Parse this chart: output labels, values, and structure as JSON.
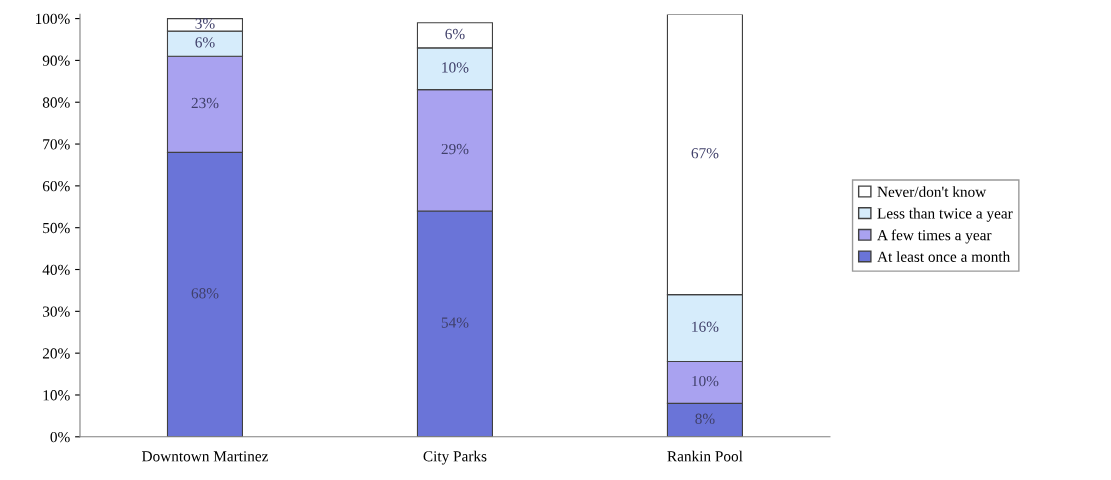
{
  "chart_data": {
    "type": "bar",
    "stacked": true,
    "categories": [
      "Downtown Martinez",
      "City Parks",
      "Rankin Pool"
    ],
    "series": [
      {
        "name": "At least once a month",
        "color": "#6a74d8",
        "values": [
          68,
          54,
          8
        ],
        "value_labels": [
          "68%",
          "54%",
          "8%"
        ]
      },
      {
        "name": "A few times a year",
        "color": "#a9a2f0",
        "values": [
          23,
          29,
          10
        ],
        "value_labels": [
          "23%",
          "29%",
          "10%"
        ]
      },
      {
        "name": "Less than twice a year",
        "color": "#d6ecfb",
        "values": [
          6,
          10,
          16
        ],
        "value_labels": [
          "6%",
          "10%",
          "16%"
        ]
      },
      {
        "name": "Never/don't know",
        "color": "#ffffff",
        "values": [
          3,
          6,
          67
        ],
        "value_labels": [
          "3%",
          "6%",
          "67%"
        ]
      }
    ],
    "ylim": [
      0,
      101
    ],
    "yticks": [
      {
        "value": 0,
        "label": "0%"
      },
      {
        "value": 10,
        "label": "10%"
      },
      {
        "value": 20,
        "label": "20%"
      },
      {
        "value": 30,
        "label": "30%"
      },
      {
        "value": 40,
        "label": "40%"
      },
      {
        "value": 50,
        "label": "50%"
      },
      {
        "value": 60,
        "label": "60%"
      },
      {
        "value": 70,
        "label": "70%"
      },
      {
        "value": 80,
        "label": "80%"
      },
      {
        "value": 90,
        "label": "90%"
      },
      {
        "value": 100,
        "label": "100%"
      }
    ],
    "legend": "right"
  }
}
